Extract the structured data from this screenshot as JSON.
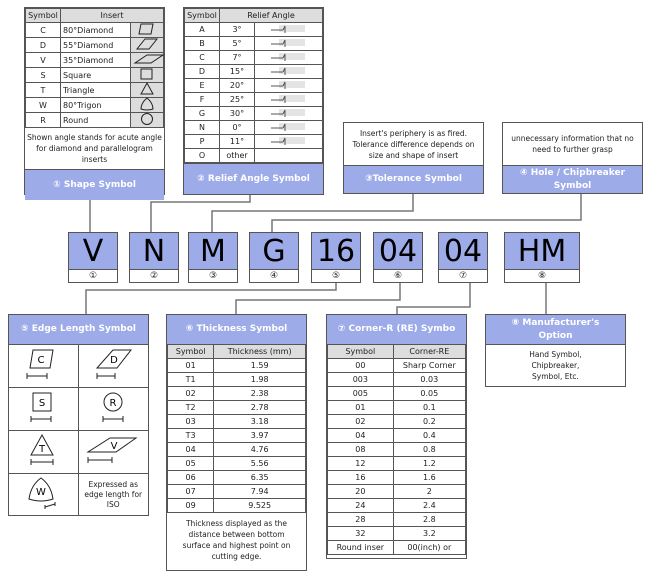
{
  "shape": {
    "headers": [
      "Symbol",
      "Insert"
    ],
    "rows": [
      {
        "symbol": "C",
        "name": "80°Diamond",
        "icon": "diamond-80-icon"
      },
      {
        "symbol": "D",
        "name": "55°Diamond",
        "icon": "diamond-55-icon"
      },
      {
        "symbol": "V",
        "name": "35°Diamond",
        "icon": "diamond-35-icon"
      },
      {
        "symbol": "S",
        "name": "Square",
        "icon": "square-icon"
      },
      {
        "symbol": "T",
        "name": "Triangle",
        "icon": "triangle-icon"
      },
      {
        "symbol": "W",
        "name": "80°Trigon",
        "icon": "trigon-icon"
      },
      {
        "symbol": "R",
        "name": "Round",
        "icon": "circle-icon"
      }
    ],
    "note": "Shown angle stands for acute angle for diamond and parallelogram inserts",
    "title": "① Shape Symbol"
  },
  "relief": {
    "headers": [
      "Symbol",
      "Relief Angle"
    ],
    "rows": [
      {
        "symbol": "A",
        "angle": "3°"
      },
      {
        "symbol": "B",
        "angle": "5°"
      },
      {
        "symbol": "C",
        "angle": "7°"
      },
      {
        "symbol": "D",
        "angle": "15°"
      },
      {
        "symbol": "E",
        "angle": "20°"
      },
      {
        "symbol": "F",
        "angle": "25°"
      },
      {
        "symbol": "G",
        "angle": "30°"
      },
      {
        "symbol": "N",
        "angle": "0°"
      },
      {
        "symbol": "P",
        "angle": "11°"
      },
      {
        "symbol": "O",
        "angle": "other"
      }
    ],
    "title": "② Relief Angle Symbol"
  },
  "tolerance": {
    "note": "Insert's periphery is as fired. Tolerance difference depends on size and shape of insert",
    "title": "③Tolerance Symbol"
  },
  "hole": {
    "note": "unnecessary information that no need to further grasp",
    "title": "④ Hole / Chipbreaker Symbol"
  },
  "codes": [
    {
      "value": "V",
      "num": "①"
    },
    {
      "value": "N",
      "num": "②"
    },
    {
      "value": "M",
      "num": "③"
    },
    {
      "value": "G",
      "num": "④"
    },
    {
      "value": "16",
      "num": "⑤"
    },
    {
      "value": "04",
      "num": "⑥"
    },
    {
      "value": "04",
      "num": "⑦"
    },
    {
      "value": "HM",
      "num": "⑧"
    }
  ],
  "edge": {
    "title": "⑤ Edge Length Symbol",
    "labels": [
      "C",
      "D",
      "S",
      "R",
      "T",
      "V",
      "W"
    ],
    "note": "Expressed as edge length for ISO"
  },
  "thickness": {
    "title": "⑥ Thickness Symbol",
    "headers": [
      "Symbol",
      "Thickness (mm)"
    ],
    "rows": [
      [
        "01",
        "1.59"
      ],
      [
        "T1",
        "1.98"
      ],
      [
        "02",
        "2.38"
      ],
      [
        "T2",
        "2.78"
      ],
      [
        "03",
        "3.18"
      ],
      [
        "T3",
        "3.97"
      ],
      [
        "04",
        "4.76"
      ],
      [
        "05",
        "5.56"
      ],
      [
        "06",
        "6.35"
      ],
      [
        "07",
        "7.94"
      ],
      [
        "09",
        "9.525"
      ]
    ],
    "note": "Thickness displayed as the distance between bottom surface and highest point on cutting edge."
  },
  "corner": {
    "title": "⑦ Corner-R (RE) Symbo",
    "headers": [
      "Symbol",
      "Corner-RE"
    ],
    "rows": [
      [
        "00",
        "Sharp Corner"
      ],
      [
        "003",
        "0.03"
      ],
      [
        "005",
        "0.05"
      ],
      [
        "01",
        "0.1"
      ],
      [
        "02",
        "0.2"
      ],
      [
        "04",
        "0.4"
      ],
      [
        "08",
        "0.8"
      ],
      [
        "12",
        "1.2"
      ],
      [
        "16",
        "1.6"
      ],
      [
        "20",
        "2"
      ],
      [
        "24",
        "2.4"
      ],
      [
        "28",
        "2.8"
      ],
      [
        "32",
        "3.2"
      ],
      [
        "Round inser",
        "00(inch) or"
      ]
    ]
  },
  "manufacturer": {
    "title": "⑧ Manufacturer's Option",
    "note": "Hand Symbol, Chipbreaker, Symbol, Etc."
  },
  "colors": {
    "header_blue": "#9dabe9",
    "table_header_gray": "#dddddd"
  }
}
